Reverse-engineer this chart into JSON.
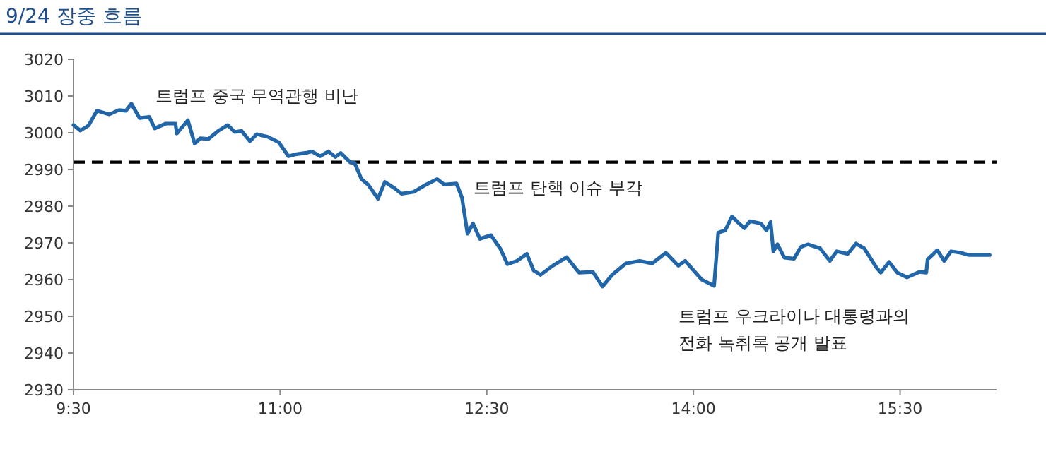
{
  "chart_data": {
    "type": "line",
    "title": "9/24 장중 흐름",
    "x": [
      9.5,
      9.55,
      9.61,
      9.67,
      9.76,
      9.83,
      9.88,
      9.92,
      9.98,
      10.05,
      10.09,
      10.17,
      10.24,
      10.25,
      10.33,
      10.38,
      10.42,
      10.48,
      10.55,
      10.62,
      10.67,
      10.72,
      10.78,
      10.83,
      10.91,
      10.99,
      11.06,
      11.11,
      11.2,
      11.23,
      11.29,
      11.35,
      11.4,
      11.44,
      11.51,
      11.54,
      11.59,
      11.64,
      11.71,
      11.76,
      11.83,
      11.88,
      11.97,
      12.06,
      12.14,
      12.19,
      12.28,
      12.32,
      12.36,
      12.4,
      12.45,
      12.53,
      12.6,
      12.65,
      12.72,
      12.79,
      12.84,
      12.89,
      12.98,
      13.08,
      13.17,
      13.27,
      13.34,
      13.41,
      13.51,
      13.61,
      13.7,
      13.8,
      13.89,
      13.94,
      14.06,
      14.15,
      14.18,
      14.23,
      14.28,
      14.32,
      14.37,
      14.41,
      14.49,
      14.53,
      14.56,
      14.58,
      14.61,
      14.66,
      14.73,
      14.78,
      14.83,
      14.92,
      14.99,
      15.04,
      15.12,
      15.18,
      15.24,
      15.33,
      15.36,
      15.42,
      15.48,
      15.55,
      15.64,
      15.69,
      15.7,
      15.77,
      15.82,
      15.87,
      15.94,
      16.0,
      16.15
    ],
    "series": [
      {
        "color": "#2066a8",
        "values": [
          3002.1,
          3000.6,
          3002,
          3006,
          3005,
          3006.2,
          3006,
          3007.9,
          3004,
          3004.3,
          3001.2,
          3002.5,
          3002.5,
          2999.8,
          3003.4,
          2997,
          2998.5,
          2998.3,
          3000.5,
          3002.1,
          3000.2,
          3000.5,
          2997.7,
          2999.6,
          2998.9,
          2997.4,
          2993.6,
          2994.1,
          2994.6,
          2994.9,
          2993.6,
          2994.9,
          2993.4,
          2994.5,
          2991.9,
          2991.8,
          2987.4,
          2985.8,
          2982,
          2986.6,
          2984.9,
          2983.4,
          2983.9,
          2985.9,
          2987.4,
          2985.9,
          2986.2,
          2982.3,
          2972.5,
          2975.3,
          2971.1,
          2972.1,
          2968.3,
          2964.2,
          2965.1,
          2967,
          2962.5,
          2961.3,
          2963.8,
          2966.1,
          2961.9,
          2962.1,
          2958.1,
          2961.3,
          2964.4,
          2965.1,
          2964.4,
          2967.3,
          2963.8,
          2965.1,
          2960,
          2958.3,
          2972.8,
          2973.4,
          2977.2,
          2975.7,
          2974,
          2975.9,
          2975.3,
          2973.4,
          2975.7,
          2967.7,
          2969.6,
          2966,
          2965.7,
          2968.9,
          2969.6,
          2968.5,
          2965.1,
          2967.7,
          2967,
          2969.8,
          2968.5,
          2963.2,
          2961.9,
          2964.8,
          2961.9,
          2960.6,
          2962.1,
          2961.9,
          2965.5,
          2968,
          2965.1,
          2967.7,
          2967.3,
          2966.7,
          2966.7
        ]
      }
    ],
    "xlim": [
      9.5,
      16.2
    ],
    "xticks": [
      {
        "value": 9.5,
        "label": "9:30"
      },
      {
        "value": 11,
        "label": "11:00"
      },
      {
        "value": 12.5,
        "label": "12:30"
      },
      {
        "value": 14,
        "label": "14:00"
      },
      {
        "value": 15.5,
        "label": "15:30"
      }
    ],
    "ylim": [
      2930,
      3020
    ],
    "yticks": [
      2930,
      2940,
      2950,
      2960,
      2970,
      2980,
      2990,
      3000,
      3010,
      3020
    ],
    "ref_lines": [
      {
        "axis": "y",
        "value": 2992,
        "color": "#000000",
        "line_style": "dashed"
      }
    ],
    "annotations": [
      "트럼프 중국 무역관행 비난",
      "트럼프 탄핵 이슈 부각",
      "트럼프 우크라이나 대통령과의\n전화 녹취록 공개 발표"
    ],
    "grid": false,
    "marker": "none",
    "line_style": "solid"
  }
}
